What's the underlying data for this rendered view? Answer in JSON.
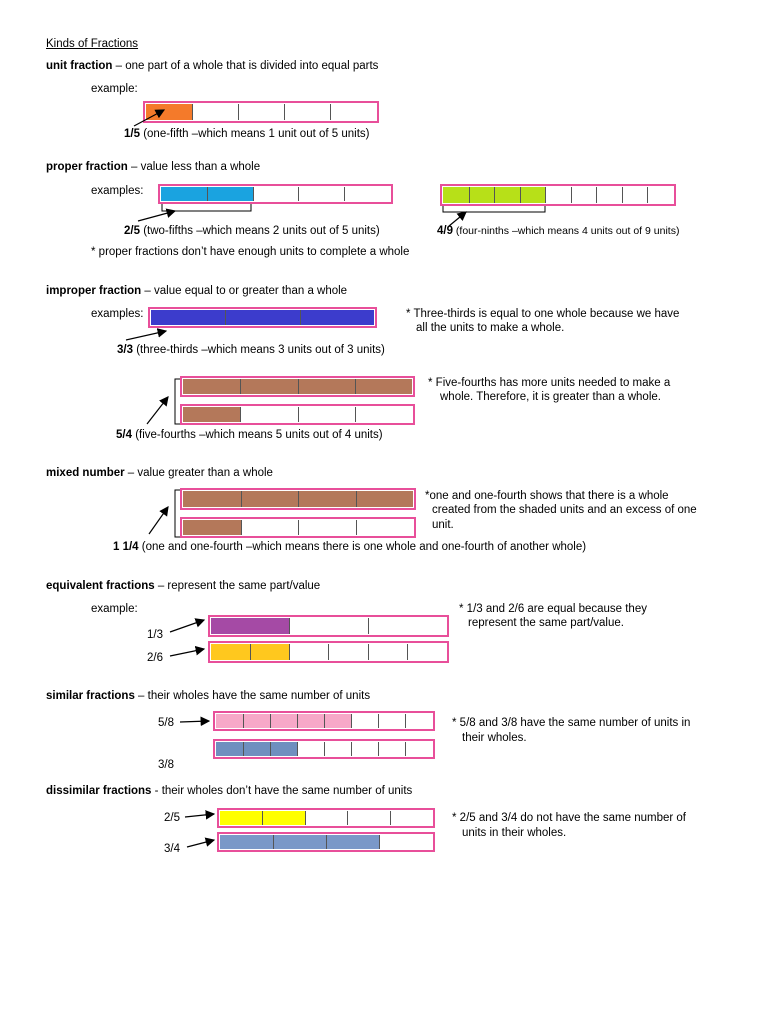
{
  "title": "Kinds of Fractions",
  "colors": {
    "bar_border": "#e84f9a",
    "unit_fill": "#f47a2a",
    "proper_blue": "#1aa3e0",
    "proper_green": "#b7e018",
    "improper_blue": "#3c3ccc",
    "brown": "#b4785a",
    "purple": "#a54aa5",
    "gold": "#ffc81e",
    "pink": "#f7a8c8",
    "steel": "#6f8fbf",
    "yellow": "#ffff00",
    "steel2": "#7a98c8"
  },
  "unit": {
    "term": "unit fraction",
    "def": " – one part of a whole that is divided into equal parts",
    "example_label": "example:",
    "fraction": "1/5",
    "caption": " (one-fifth –which means 1 unit out of 5 units)",
    "bar": {
      "parts": 5,
      "shaded": 1
    }
  },
  "proper": {
    "term": "proper fraction",
    "def": " – value less than a whole",
    "example_label": "examples:",
    "a_fraction": "2/5",
    "a_caption": " (two-fifths –which means 2 units out of 5 units)",
    "b_fraction": "4/9",
    "b_caption": " (four-ninths –which means 4 units out of 9 units)",
    "note": "* proper fractions don’t have enough units to complete a whole",
    "bar_a": {
      "parts": 5,
      "shaded": 2
    },
    "bar_b": {
      "parts": 9,
      "shaded": 4
    }
  },
  "improper": {
    "term": "improper fraction",
    "def": " – value equal to or greater than a whole",
    "example_label": "examples:",
    "a_fraction": "3/3",
    "a_caption": " (three-thirds –which means 3 units out of 3 units)",
    "a_note_1": "* Three-thirds is equal to one whole because we have",
    "a_note_2": "all the units to make a whole.",
    "b_fraction": "5/4",
    "b_caption": " (five-fourths –which means 5 units out of 4 units)",
    "b_note_1": "* Five-fourths has more units needed to make a",
    "b_note_2": "whole. Therefore, it is greater than a whole.",
    "bar_a": {
      "parts": 3,
      "shaded": 3
    },
    "bar_b1": {
      "parts": 4,
      "shaded": 4
    },
    "bar_b2": {
      "parts": 4,
      "shaded": 1
    }
  },
  "mixed": {
    "term": "mixed number",
    "def": " – value greater than a whole",
    "fraction": "1 1/4",
    "caption": " (one and one-fourth –which means there is one whole and one-fourth of another whole)",
    "note_1": "*one and one-fourth shows that there is a whole",
    "note_2": "created from the shaded units and an excess of one",
    "note_3": "unit.",
    "bar_1": {
      "parts": 4,
      "shaded": 4
    },
    "bar_2": {
      "parts": 4,
      "shaded": 1
    }
  },
  "equivalent": {
    "term": "equivalent fractions",
    "def": " – represent the same part/value",
    "example_label": "example:",
    "label_a": "1/3",
    "label_b": "2/6",
    "note_1": "* 1/3 and 2/6 are equal because they",
    "note_2": "represent the same part/value.",
    "bar_a": {
      "parts": 3,
      "shaded": 1
    },
    "bar_b": {
      "parts": 6,
      "shaded": 2
    }
  },
  "similar": {
    "term": "similar fractions",
    "def": " – their wholes have the same number of units",
    "label_a": "5/8",
    "label_b": "3/8",
    "note_1": "* 5/8 and 3/8 have the same number of units in",
    "note_2": "their wholes.",
    "bar_a": {
      "parts": 8,
      "shaded": 5
    },
    "bar_b": {
      "parts": 8,
      "shaded": 3
    }
  },
  "dissimilar": {
    "term": "dissimilar fractions",
    "def": " - their wholes don’t have the same number of units",
    "label_a": "2/5",
    "label_b": "3/4",
    "note_1": "* 2/5 and 3/4 do not have the same number of",
    "note_2": "units in their wholes.",
    "bar_a": {
      "parts": 5,
      "shaded": 2
    },
    "bar_b": {
      "parts": 4,
      "shaded": 3
    }
  }
}
